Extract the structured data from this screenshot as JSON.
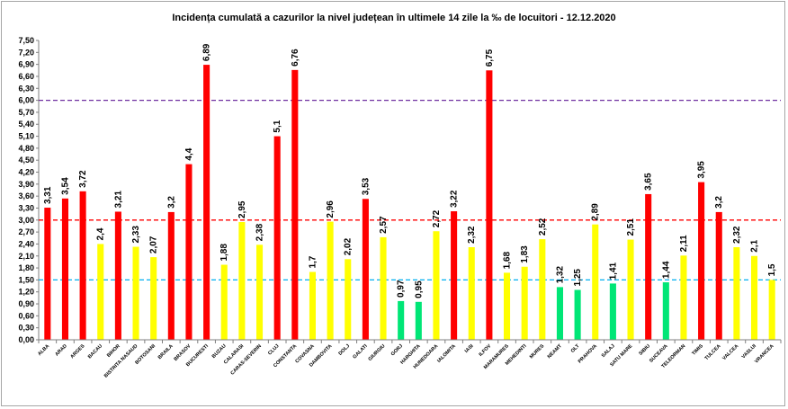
{
  "chart_data": {
    "type": "bar",
    "title": "Incidența cumulată a cazurilor la nivel județean în ultimele 14 zile   la ‰ de locuitori  - 12.12.2020",
    "xlabel": "",
    "ylabel": "",
    "ylim": [
      0,
      7.5
    ],
    "yticks": [
      "0,00",
      "0,30",
      "0,60",
      "0,90",
      "1,20",
      "1,50",
      "1,80",
      "2,10",
      "2,40",
      "2,70",
      "3,00",
      "3,30",
      "3,60",
      "3,90",
      "4,20",
      "4,50",
      "4,80",
      "5,10",
      "5,40",
      "5,70",
      "6,00",
      "6,30",
      "6,60",
      "6,90",
      "7,20",
      "7,50"
    ],
    "grid": false,
    "legend": "none",
    "categories": [
      "ALBA",
      "ARAD",
      "ARGES",
      "BACAU",
      "BIHOR",
      "BISTRITA NASAUD",
      "BOTOSANI",
      "BRAILA",
      "BRASOV",
      "BUCURESTI",
      "BUZAU",
      "CALARASI",
      "CARAS-SEVERIN",
      "CLUJ",
      "CONSTANTA",
      "COVASNA",
      "DAMBOVITA",
      "DOLJ",
      "GALATI",
      "GIURGIU",
      "GORJ",
      "HARGHITA",
      "HUNEDOARA",
      "IALOMITA",
      "IASI",
      "ILFOV",
      "MARAMURES",
      "MEHEDINTI",
      "MURES",
      "NEAMT",
      "OLT",
      "PRAHOVA",
      "SALAJ",
      "SATU MARE",
      "SIBIU",
      "SUCEAVA",
      "TELEORMAN",
      "TIMIS",
      "TULCEA",
      "VALCEA",
      "VASLUI",
      "VRANCEA"
    ],
    "values": [
      3.31,
      3.54,
      3.72,
      2.4,
      3.21,
      2.33,
      2.07,
      3.2,
      4.4,
      6.89,
      1.88,
      2.95,
      2.38,
      5.1,
      6.76,
      1.7,
      2.96,
      2.02,
      3.53,
      2.57,
      0.97,
      0.95,
      2.72,
      3.22,
      2.32,
      6.75,
      1.68,
      1.83,
      2.52,
      1.32,
      1.25,
      2.89,
      1.41,
      2.51,
      3.65,
      1.44,
      2.11,
      3.95,
      3.2,
      2.32,
      2.1,
      1.5
    ],
    "value_labels": [
      "3,31",
      "3,54",
      "3,72",
      "2,4",
      "3,21",
      "2,33",
      "2,07",
      "3,2",
      "4,4",
      "6,89",
      "1,88",
      "2,95",
      "2,38",
      "5,1",
      "6,76",
      "1,7",
      "2,96",
      "2,02",
      "3,53",
      "2,57",
      "0,97",
      "0,95",
      "2,72",
      "3,22",
      "2,32",
      "6,75",
      "1,68",
      "1,83",
      "2,52",
      "1,32",
      "1,25",
      "2,89",
      "1,41",
      "2,51",
      "3,65",
      "1,44",
      "2,11",
      "3,95",
      "3,2",
      "2,32",
      "2,1",
      "1,5"
    ],
    "thresholds": [
      {
        "value": 6.0,
        "color": "#7030a0"
      },
      {
        "value": 3.0,
        "color": "#ff0000"
      },
      {
        "value": 1.5,
        "color": "#00b0f0"
      }
    ],
    "color_bands": [
      {
        "below": 1.5,
        "color": "#00e676"
      },
      {
        "below": 3.0,
        "color": "#ffff00"
      },
      {
        "below": 99,
        "color": "#ff0000"
      }
    ]
  }
}
